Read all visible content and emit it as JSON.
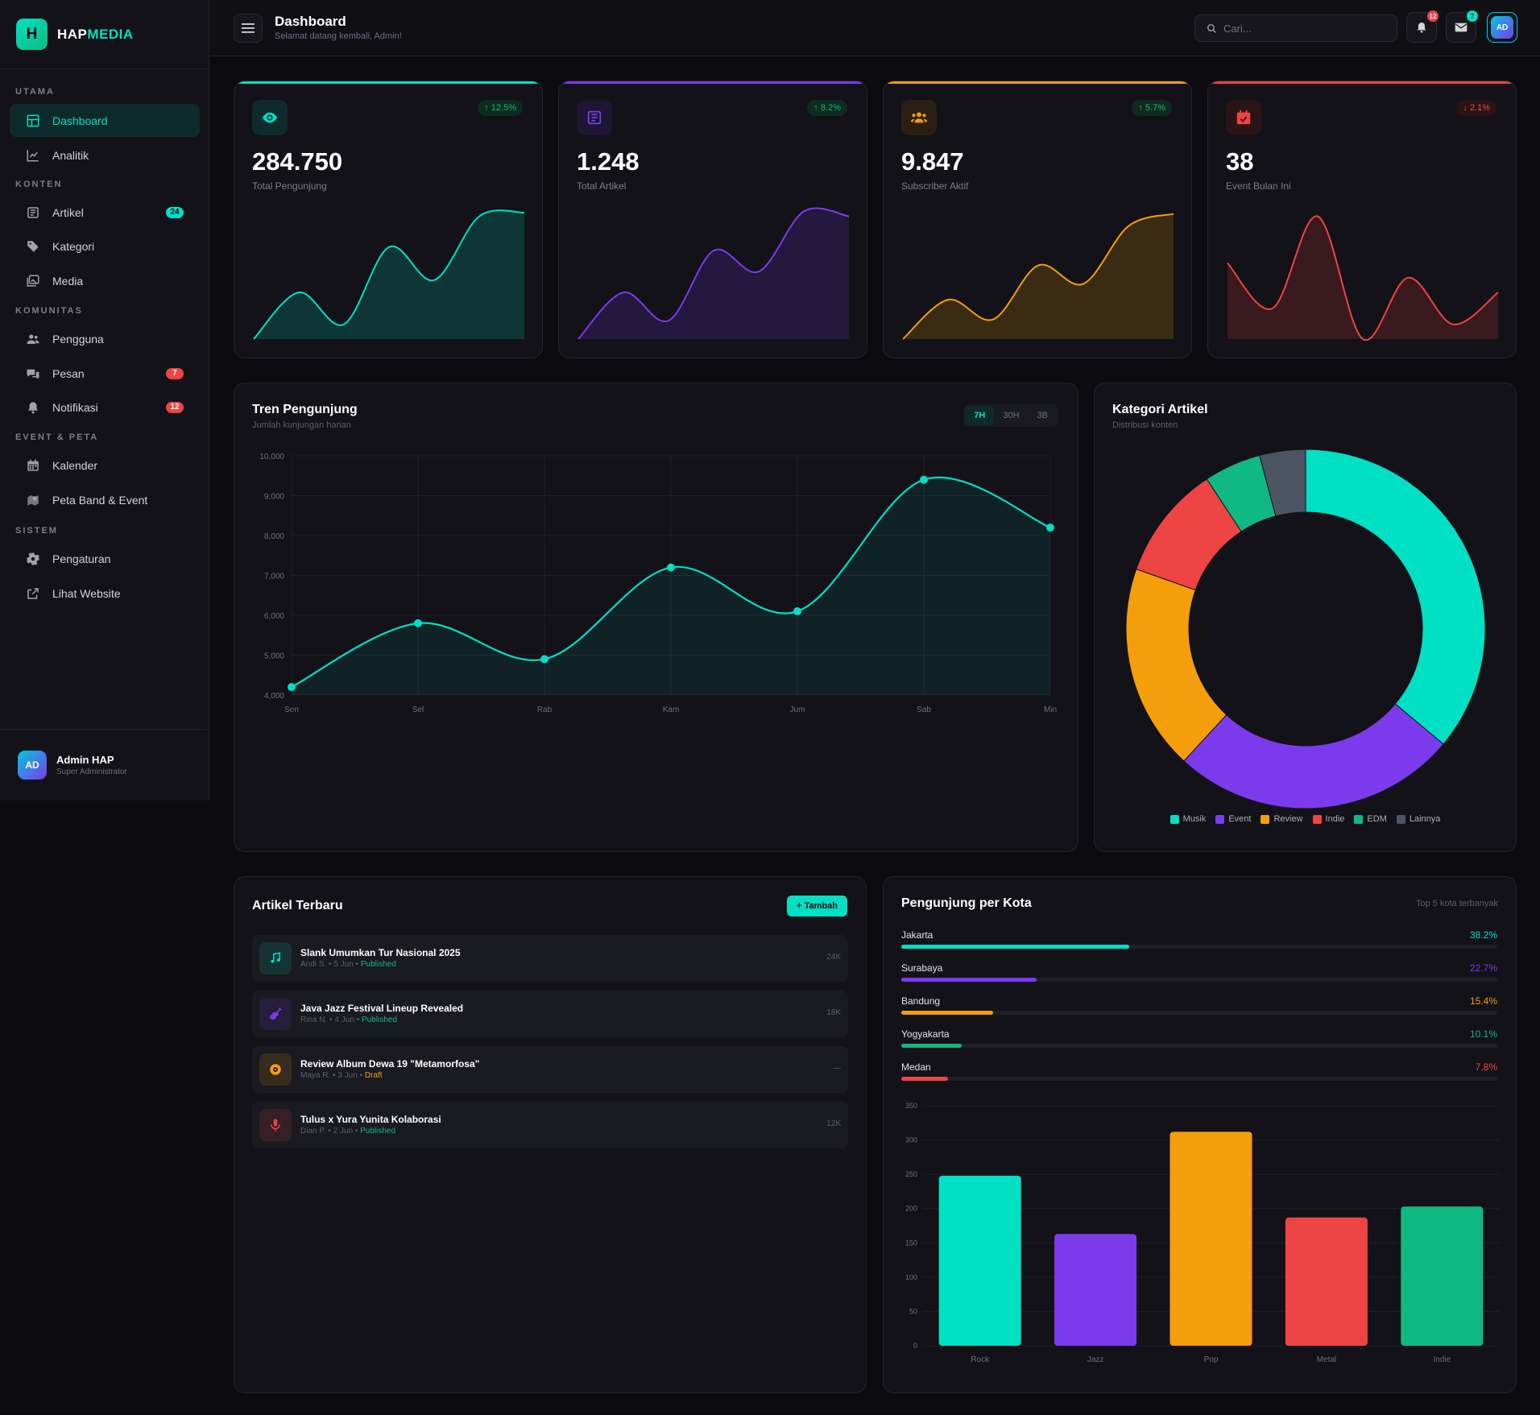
{
  "brand": {
    "logo_letter": "H",
    "name_a": "HAP",
    "name_b": "MEDIA"
  },
  "sidebar": {
    "sections": [
      "UTAMA",
      "KONTEN",
      "KOMUNITAS",
      "EVENT & PETA",
      "SISTEM"
    ],
    "items": [
      {
        "label": "Dashboard",
        "icon": "dashboard-icon",
        "active": true
      },
      {
        "label": "Analitik",
        "icon": "chart-line-icon"
      },
      {
        "label": "Artikel",
        "icon": "newspaper-icon",
        "badge": "24"
      },
      {
        "label": "Kategori",
        "icon": "tag-icon"
      },
      {
        "label": "Media",
        "icon": "images-icon"
      },
      {
        "label": "Pengguna",
        "icon": "users-icon"
      },
      {
        "label": "Pesan",
        "icon": "chat-icon",
        "badge": "7"
      },
      {
        "label": "Notifikasi",
        "icon": "bell-icon",
        "badge": "12"
      },
      {
        "label": "Kalender",
        "icon": "calendar-icon"
      },
      {
        "label": "Peta Band & Event",
        "icon": "map-icon"
      },
      {
        "label": "Pengaturan",
        "icon": "gear-icon"
      },
      {
        "label": "Lihat Website",
        "icon": "external-link-icon"
      }
    ],
    "user": {
      "initials": "AD",
      "name": "Admin HAP",
      "role": "Super Administrator"
    }
  },
  "header": {
    "title": "Dashboard",
    "subtitle": "Selamat datang kembali, Admin!",
    "search_placeholder": "Cari...",
    "notif_count": "12",
    "mail_count": "7",
    "avatar": "AD"
  },
  "stats": [
    {
      "value": "284.750",
      "label": "Total Pengunjung",
      "change": "12.5%",
      "dir": "up",
      "color": "#00e0c4",
      "icon": "eye-icon"
    },
    {
      "value": "1.248",
      "label": "Total Artikel",
      "change": "8.2%",
      "dir": "up",
      "color": "#7c3aed",
      "icon": "newspaper-icon"
    },
    {
      "value": "9.847",
      "label": "Subscriber Aktif",
      "change": "5.7%",
      "dir": "up",
      "color": "#f59e0b",
      "icon": "users-icon"
    },
    {
      "value": "38",
      "label": "Event Bulan Ini",
      "change": "2.1%",
      "dir": "down",
      "color": "#ef4444",
      "icon": "calendar-icon"
    }
  ],
  "trend": {
    "title": "Tren Pengunjung",
    "subtitle": "Jumlah kunjungan harian",
    "ranges": [
      "7H",
      "30H",
      "3B"
    ],
    "active_range": "7H"
  },
  "donut": {
    "title": "Kategori Artikel",
    "subtitle": "Distribusi konten"
  },
  "articles": {
    "title": "Artikel Terbaru",
    "add_label": "+ Tambah",
    "items": [
      {
        "title": "Slank Umumkan Tur Nasional 2025",
        "author": "Andi S.",
        "date": "5 Jun",
        "status": "Published",
        "views": "24K",
        "icon": "music-note-icon",
        "color": "#00e0c4"
      },
      {
        "title": "Java Jazz Festival Lineup Revealed",
        "author": "Rina N.",
        "date": "4 Jun",
        "status": "Published",
        "views": "18K",
        "icon": "guitar-icon",
        "color": "#7c3aed"
      },
      {
        "title": "Review Album Dewa 19 \"Metamorfosa\"",
        "author": "Maya R.",
        "date": "3 Jun",
        "status": "Draft",
        "views": "—",
        "icon": "disc-icon",
        "color": "#f59e0b"
      },
      {
        "title": "Tulus x Yura Yunita Kolaborasi",
        "author": "Dian P.",
        "date": "2 Jun",
        "status": "Published",
        "views": "12K",
        "icon": "microphone-icon",
        "color": "#ef4444"
      }
    ]
  },
  "cities": {
    "title": "Pengunjung per Kota",
    "subtitle": "Top 5 kota terbanyak",
    "items": [
      {
        "name": "Jakarta",
        "pct": "38.2%",
        "value": 38.2,
        "color": "#00e0c4"
      },
      {
        "name": "Surabaya",
        "pct": "22.7%",
        "value": 22.7,
        "color": "#7c3aed"
      },
      {
        "name": "Bandung",
        "pct": "15.4%",
        "value": 15.4,
        "color": "#f59e0b"
      },
      {
        "name": "Yogyakarta",
        "pct": "10.1%",
        "value": 10.1,
        "color": "#10b981"
      },
      {
        "name": "Medan",
        "pct": "7.8%",
        "value": 7.8,
        "color": "#ef4444"
      }
    ]
  },
  "chart_data": [
    {
      "type": "area",
      "x": [
        "Sen",
        "Sel",
        "Rab",
        "Kam",
        "Jum",
        "Sab",
        "Min"
      ],
      "series": [
        {
          "values": [
            4200,
            5800,
            4900,
            7200,
            6100,
            9400,
            8200
          ]
        }
      ],
      "ylim": [
        4000,
        10000
      ],
      "yticks": [
        "10,000",
        "9,000",
        "8,000",
        "7,000",
        "6,000",
        "5,000",
        "4,000"
      ],
      "grid": true,
      "color": "#00e0c4"
    },
    {
      "type": "pie",
      "categories": [
        "Musik",
        "Event",
        "Review",
        "Indie",
        "EDM",
        "Lainnya"
      ],
      "values": [
        35,
        25,
        18,
        10,
        5,
        4
      ],
      "colors": [
        "#00e0c4",
        "#7c3aed",
        "#f59e0b",
        "#ef4444",
        "#10b981",
        "#4b5563"
      ],
      "legend": "bottom"
    },
    {
      "type": "bar",
      "categories": [
        "Rock",
        "Jazz",
        "Pop",
        "Metal",
        "Indie"
      ],
      "values": [
        248,
        163,
        312,
        187,
        203
      ],
      "ylim": [
        0,
        350
      ],
      "yticks": [
        "350",
        "300",
        "250",
        "200",
        "150",
        "100",
        "50",
        "0"
      ],
      "colors": [
        "#00e0c4",
        "#7c3aed",
        "#f59e0b",
        "#ef4444",
        "#10b981"
      ],
      "grid": true
    },
    {
      "type": "area",
      "series": [
        {
          "name": "Total Pengunjung",
          "values": [
            0,
            38,
            12,
            75,
            48,
            100,
            103
          ],
          "color": "#00e0c4"
        },
        {
          "name": "Total Artikel",
          "values": [
            0,
            38,
            15,
            72,
            55,
            104,
            100
          ],
          "color": "#7c3aed"
        },
        {
          "name": "Subscriber Aktif",
          "values": [
            0,
            32,
            16,
            60,
            45,
            92,
            102
          ],
          "color": "#f59e0b"
        },
        {
          "name": "Event Bulan Ini",
          "values": [
            62,
            25,
            100,
            0,
            50,
            12,
            38
          ],
          "color": "#ef4444"
        }
      ]
    }
  ]
}
